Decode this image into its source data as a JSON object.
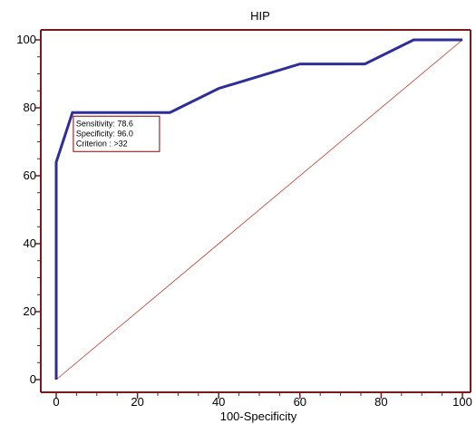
{
  "chart_data": {
    "type": "line",
    "title": "HIP",
    "xlabel": "100-Specificity",
    "ylabel": "",
    "xlim": [
      0,
      100
    ],
    "ylim": [
      0,
      100
    ],
    "x_ticks": [
      0,
      20,
      40,
      60,
      80,
      100
    ],
    "y_ticks": [
      0,
      20,
      40,
      60,
      80,
      100
    ],
    "grid": false,
    "series": [
      {
        "kind": "roc-curve",
        "color": "#2e2e9a",
        "x": [
          0,
          0,
          4,
          28,
          40,
          60,
          76,
          88,
          100
        ],
        "y": [
          0,
          64,
          78.6,
          78.6,
          85.7,
          92.9,
          92.9,
          100,
          100
        ]
      },
      {
        "kind": "reference-diagonal",
        "color": "#c0392b",
        "x": [
          0,
          100
        ],
        "y": [
          0,
          100
        ]
      }
    ],
    "annotation": {
      "point": [
        4,
        78.6
      ],
      "lines": [
        "Sensitivity: 78.6",
        "Specificity: 96.0",
        "Criterion : >32"
      ],
      "border_color": "#8b0000"
    },
    "axis_color": "#7b1a1a"
  }
}
